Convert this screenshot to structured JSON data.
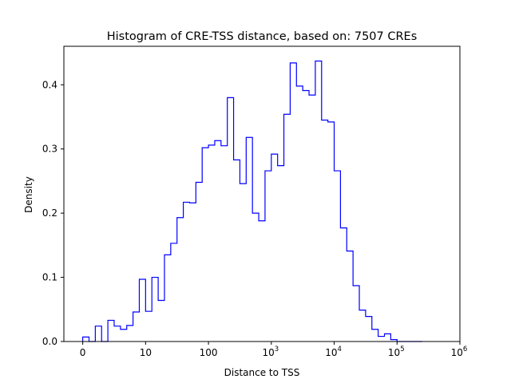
{
  "chart_data": {
    "type": "histogram-step",
    "title": "Histogram of CRE-TSS distance, based on: 7507 CREs",
    "xlabel": "Distance to TSS",
    "ylabel": "Density",
    "x_scale": "symlog",
    "xlim": [
      -0.3,
      6
    ],
    "ylim": [
      0,
      0.46
    ],
    "x_ticks": [
      {
        "pos": 0,
        "base": "0",
        "exp": ""
      },
      {
        "pos": 1,
        "base": "10",
        "exp": ""
      },
      {
        "pos": 2,
        "base": "100",
        "exp": ""
      },
      {
        "pos": 3,
        "base": "10",
        "exp": "3"
      },
      {
        "pos": 4,
        "base": "10",
        "exp": "4"
      },
      {
        "pos": 5,
        "base": "10",
        "exp": "5"
      },
      {
        "pos": 6,
        "base": "10",
        "exp": "6"
      }
    ],
    "y_ticks": [
      "0.0",
      "0.1",
      "0.2",
      "0.3",
      "0.4"
    ],
    "y_tick_values": [
      0.0,
      0.1,
      0.2,
      0.3,
      0.4
    ],
    "line_color": "#0000ff",
    "grid": false,
    "series": [
      {
        "bin_edges": [
          0,
          0.1,
          0.2,
          0.3,
          0.4,
          0.5,
          0.6,
          0.7,
          0.8,
          0.9,
          1.0,
          1.1,
          1.2,
          1.3,
          1.4,
          1.5,
          1.6,
          1.7,
          1.8,
          1.9,
          2.0,
          2.1,
          2.2,
          2.3,
          2.4,
          2.5,
          2.6,
          2.7,
          2.8,
          2.9,
          3.0,
          3.1,
          3.2,
          3.3,
          3.4,
          3.5,
          3.6,
          3.7,
          3.8,
          3.9,
          4.0,
          4.1,
          4.2,
          4.3,
          4.4,
          4.5,
          4.6,
          4.7,
          4.8,
          4.9,
          5.0,
          5.1,
          5.2,
          5.3,
          5.4
        ],
        "density": [
          0.007,
          0.0,
          0.024,
          0.0,
          0.033,
          0.024,
          0.019,
          0.025,
          0.046,
          0.097,
          0.047,
          0.1,
          0.064,
          0.135,
          0.153,
          0.193,
          0.217,
          0.216,
          0.248,
          0.302,
          0.306,
          0.313,
          0.305,
          0.38,
          0.283,
          0.246,
          0.318,
          0.2,
          0.188,
          0.266,
          0.292,
          0.274,
          0.354,
          0.434,
          0.398,
          0.391,
          0.384,
          0.437,
          0.345,
          0.342,
          0.266,
          0.177,
          0.141,
          0.087,
          0.049,
          0.039,
          0.019,
          0.008,
          0.012,
          0.003,
          0.0,
          0.0,
          0.0,
          0.0
        ]
      }
    ]
  }
}
